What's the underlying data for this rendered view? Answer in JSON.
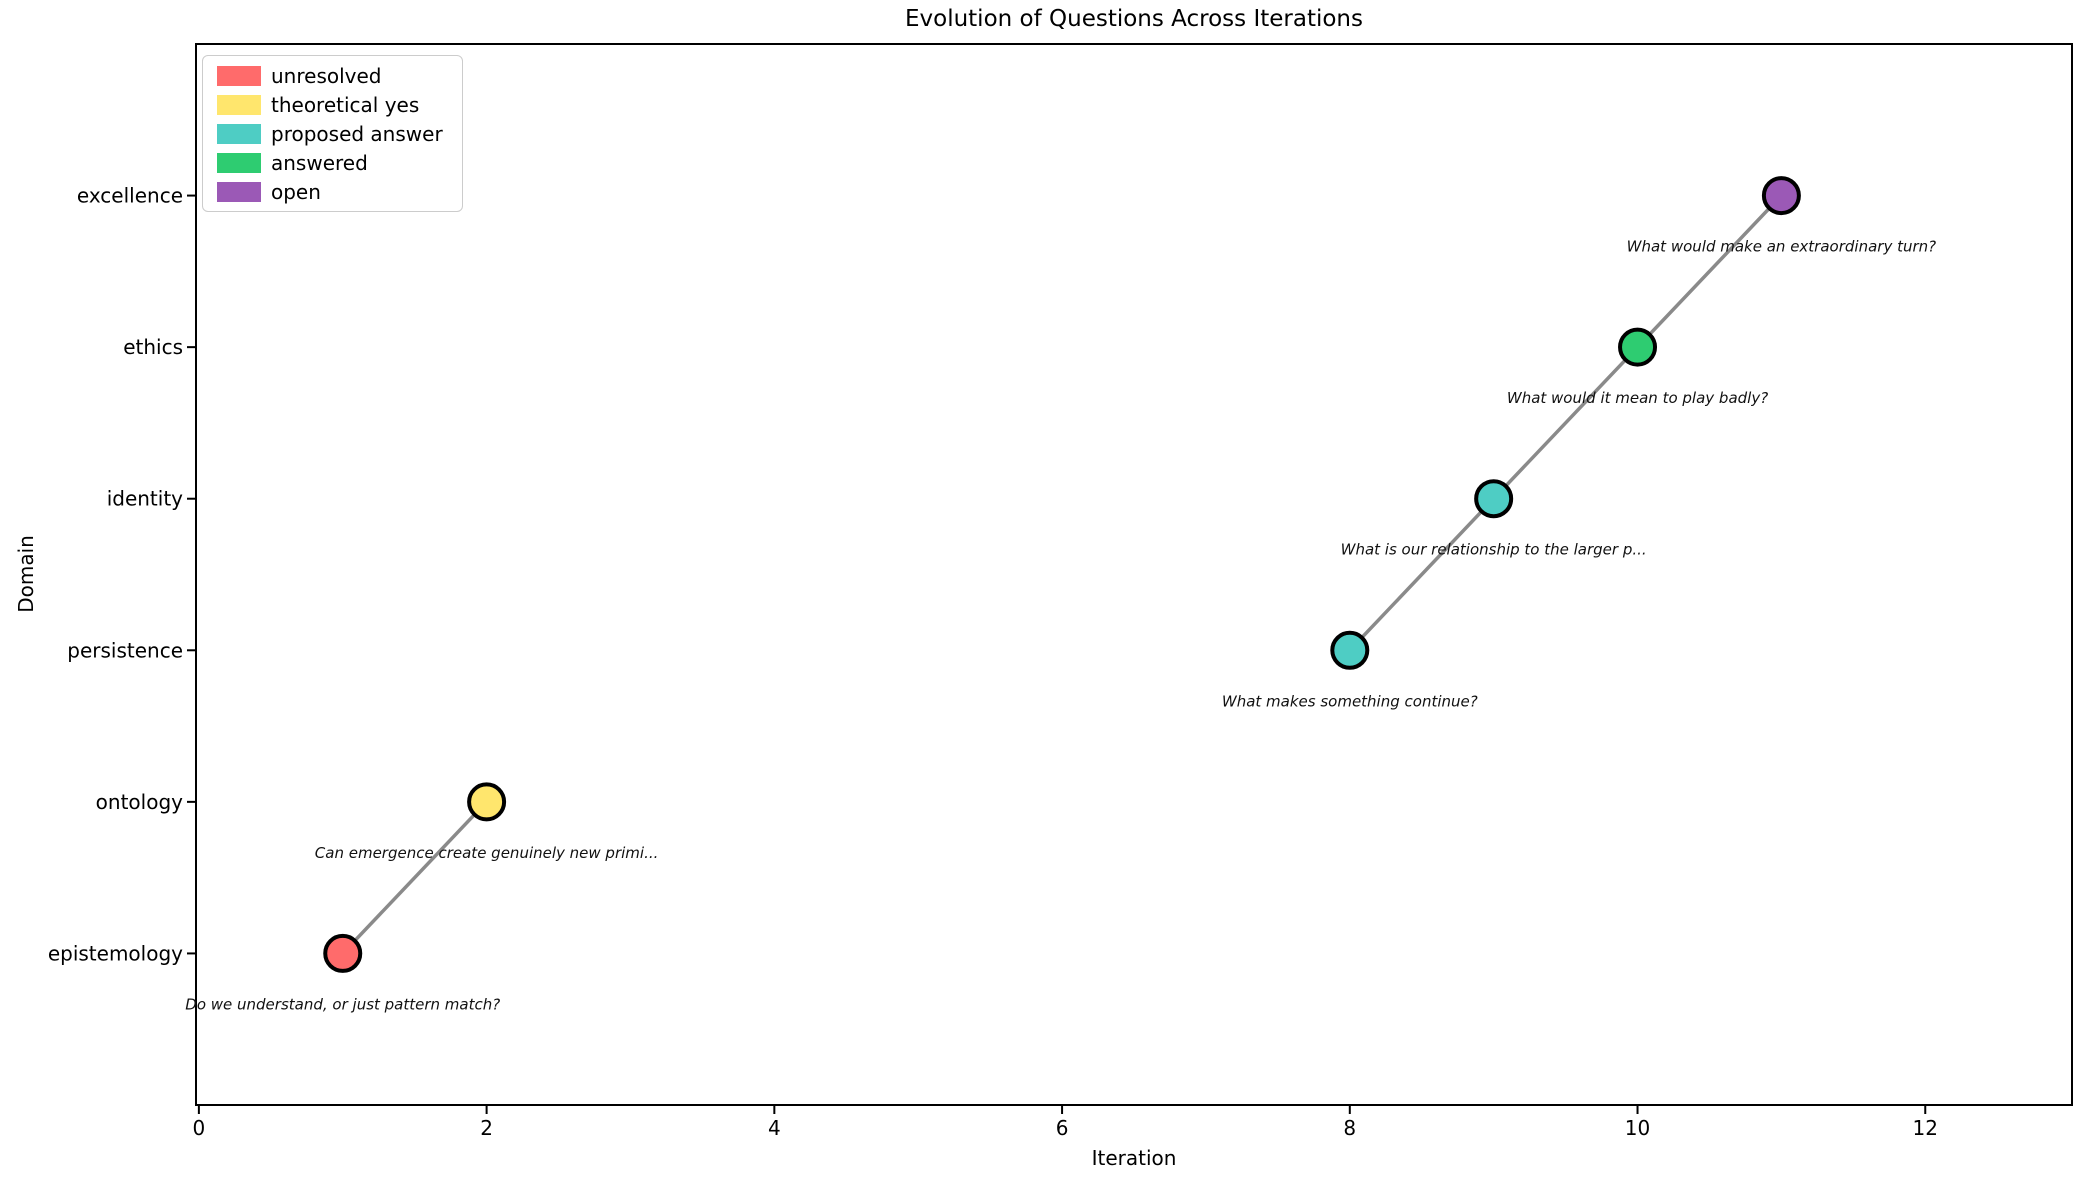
{
  "chart_data": {
    "type": "scatter",
    "title": "Evolution of Questions Across Iterations",
    "xlabel": "Iteration",
    "ylabel": "Domain",
    "x_ticks": [
      0,
      2,
      4,
      6,
      8,
      10,
      12
    ],
    "xlim": [
      -0.02,
      13.02
    ],
    "ylim": [
      -1,
      6
    ],
    "y_categories": [
      "epistemology",
      "ontology",
      "persistence",
      "identity",
      "ethics",
      "excellence"
    ],
    "grid": false,
    "legend_position": "upper left",
    "statuses": {
      "unresolved": "#FF6B6B",
      "theoretical yes": "#FFE66D",
      "proposed answer": "#4ECDC4",
      "answered": "#2ECC71",
      "open": "#9B59B6"
    },
    "legend": [
      {
        "label": "unresolved",
        "color": "#FF6B6B"
      },
      {
        "label": "theoretical yes",
        "color": "#FFE66D"
      },
      {
        "label": "proposed answer",
        "color": "#4ECDC4"
      },
      {
        "label": "answered",
        "color": "#2ECC71"
      },
      {
        "label": "open",
        "color": "#9B59B6"
      }
    ],
    "points": [
      {
        "iteration": 1,
        "domain": "epistemology",
        "domain_index": 0,
        "status": "unresolved",
        "question": "Do we understand, or just pattern match?"
      },
      {
        "iteration": 2,
        "domain": "ontology",
        "domain_index": 1,
        "status": "theoretical yes",
        "question": "Can emergence create genuinely new primi..."
      },
      {
        "iteration": 8,
        "domain": "persistence",
        "domain_index": 2,
        "status": "proposed answer",
        "question": "What makes something continue?"
      },
      {
        "iteration": 9,
        "domain": "identity",
        "domain_index": 3,
        "status": "proposed answer",
        "question": "What is our relationship to the larger p..."
      },
      {
        "iteration": 10,
        "domain": "ethics",
        "domain_index": 4,
        "status": "answered",
        "question": "What would it mean to play badly?"
      },
      {
        "iteration": 11,
        "domain": "excellence",
        "domain_index": 5,
        "status": "open",
        "question": "What would make an extraordinary turn?"
      }
    ],
    "line": {
      "color": "#8a8a8a",
      "width": 3.5,
      "segments": [
        [
          0,
          1
        ],
        [
          2,
          3,
          4,
          5
        ]
      ]
    },
    "style": {
      "marker_radius": 17.5,
      "marker_edge_color": "#000000",
      "marker_edge_width": 4,
      "spine_color": "#000000",
      "annotation_color": "#111111"
    }
  }
}
